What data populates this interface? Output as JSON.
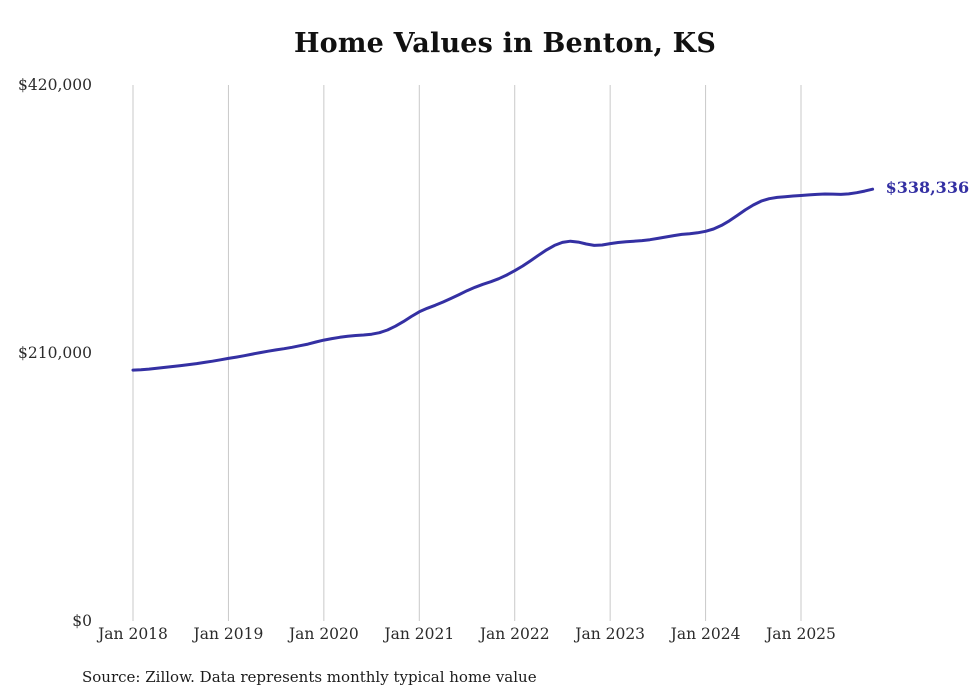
{
  "title": "Home Values in Benton, KS",
  "source_note": "Source: Zillow. Data represents monthly typical home value",
  "end_label": "$338,336",
  "colors": {
    "line": "#3430a3",
    "gridline": "#c9c9c9",
    "text": "#2b2b2b"
  },
  "chart_data": {
    "type": "line",
    "title": "Home Values in Benton, KS",
    "x": {
      "start": "Jan 2018",
      "end": "Oct 2025",
      "interval": "monthly"
    },
    "x_tick_labels": [
      "Jan 2018",
      "Jan 2019",
      "Jan 2020",
      "Jan 2021",
      "Jan 2022",
      "Jan 2023",
      "Jan 2024",
      "Jan 2025"
    ],
    "y_ticks": [
      {
        "label": "$420,000",
        "value": 420000
      },
      {
        "label": "$210,000",
        "value": 210000
      },
      {
        "label": "$0",
        "value": 0
      }
    ],
    "ylim": [
      0,
      420000
    ],
    "grid": "vertical-only",
    "legend": "none",
    "series": [
      {
        "name": "Monthly typical home value",
        "values": [
          196600,
          196900,
          197400,
          198000,
          198700,
          199400,
          200100,
          200900,
          201700,
          202600,
          203600,
          204700,
          205800,
          206800,
          207900,
          209100,
          210300,
          211400,
          212400,
          213400,
          214500,
          215700,
          217000,
          218600,
          220100,
          221300,
          222300,
          223100,
          223700,
          224100,
          224700,
          225900,
          228000,
          231000,
          234600,
          238600,
          242300,
          245000,
          247400,
          250000,
          252800,
          255800,
          258800,
          261500,
          263800,
          265900,
          268200,
          271100,
          274500,
          278200,
          282300,
          286600,
          290800,
          294300,
          296700,
          297600,
          296900,
          295400,
          294300,
          294600,
          295700,
          296600,
          297200,
          297600,
          298100,
          298800,
          299800,
          300900,
          302000,
          302900,
          303500,
          304200,
          305400,
          307200,
          310000,
          313600,
          317800,
          322100,
          326000,
          329000,
          330900,
          331900,
          332500,
          333000,
          333400,
          333900,
          334300,
          334600,
          334500,
          334300,
          334700,
          335600,
          336900,
          338336
        ]
      }
    ],
    "last_value": 338336,
    "last_value_label": "$338,336"
  }
}
